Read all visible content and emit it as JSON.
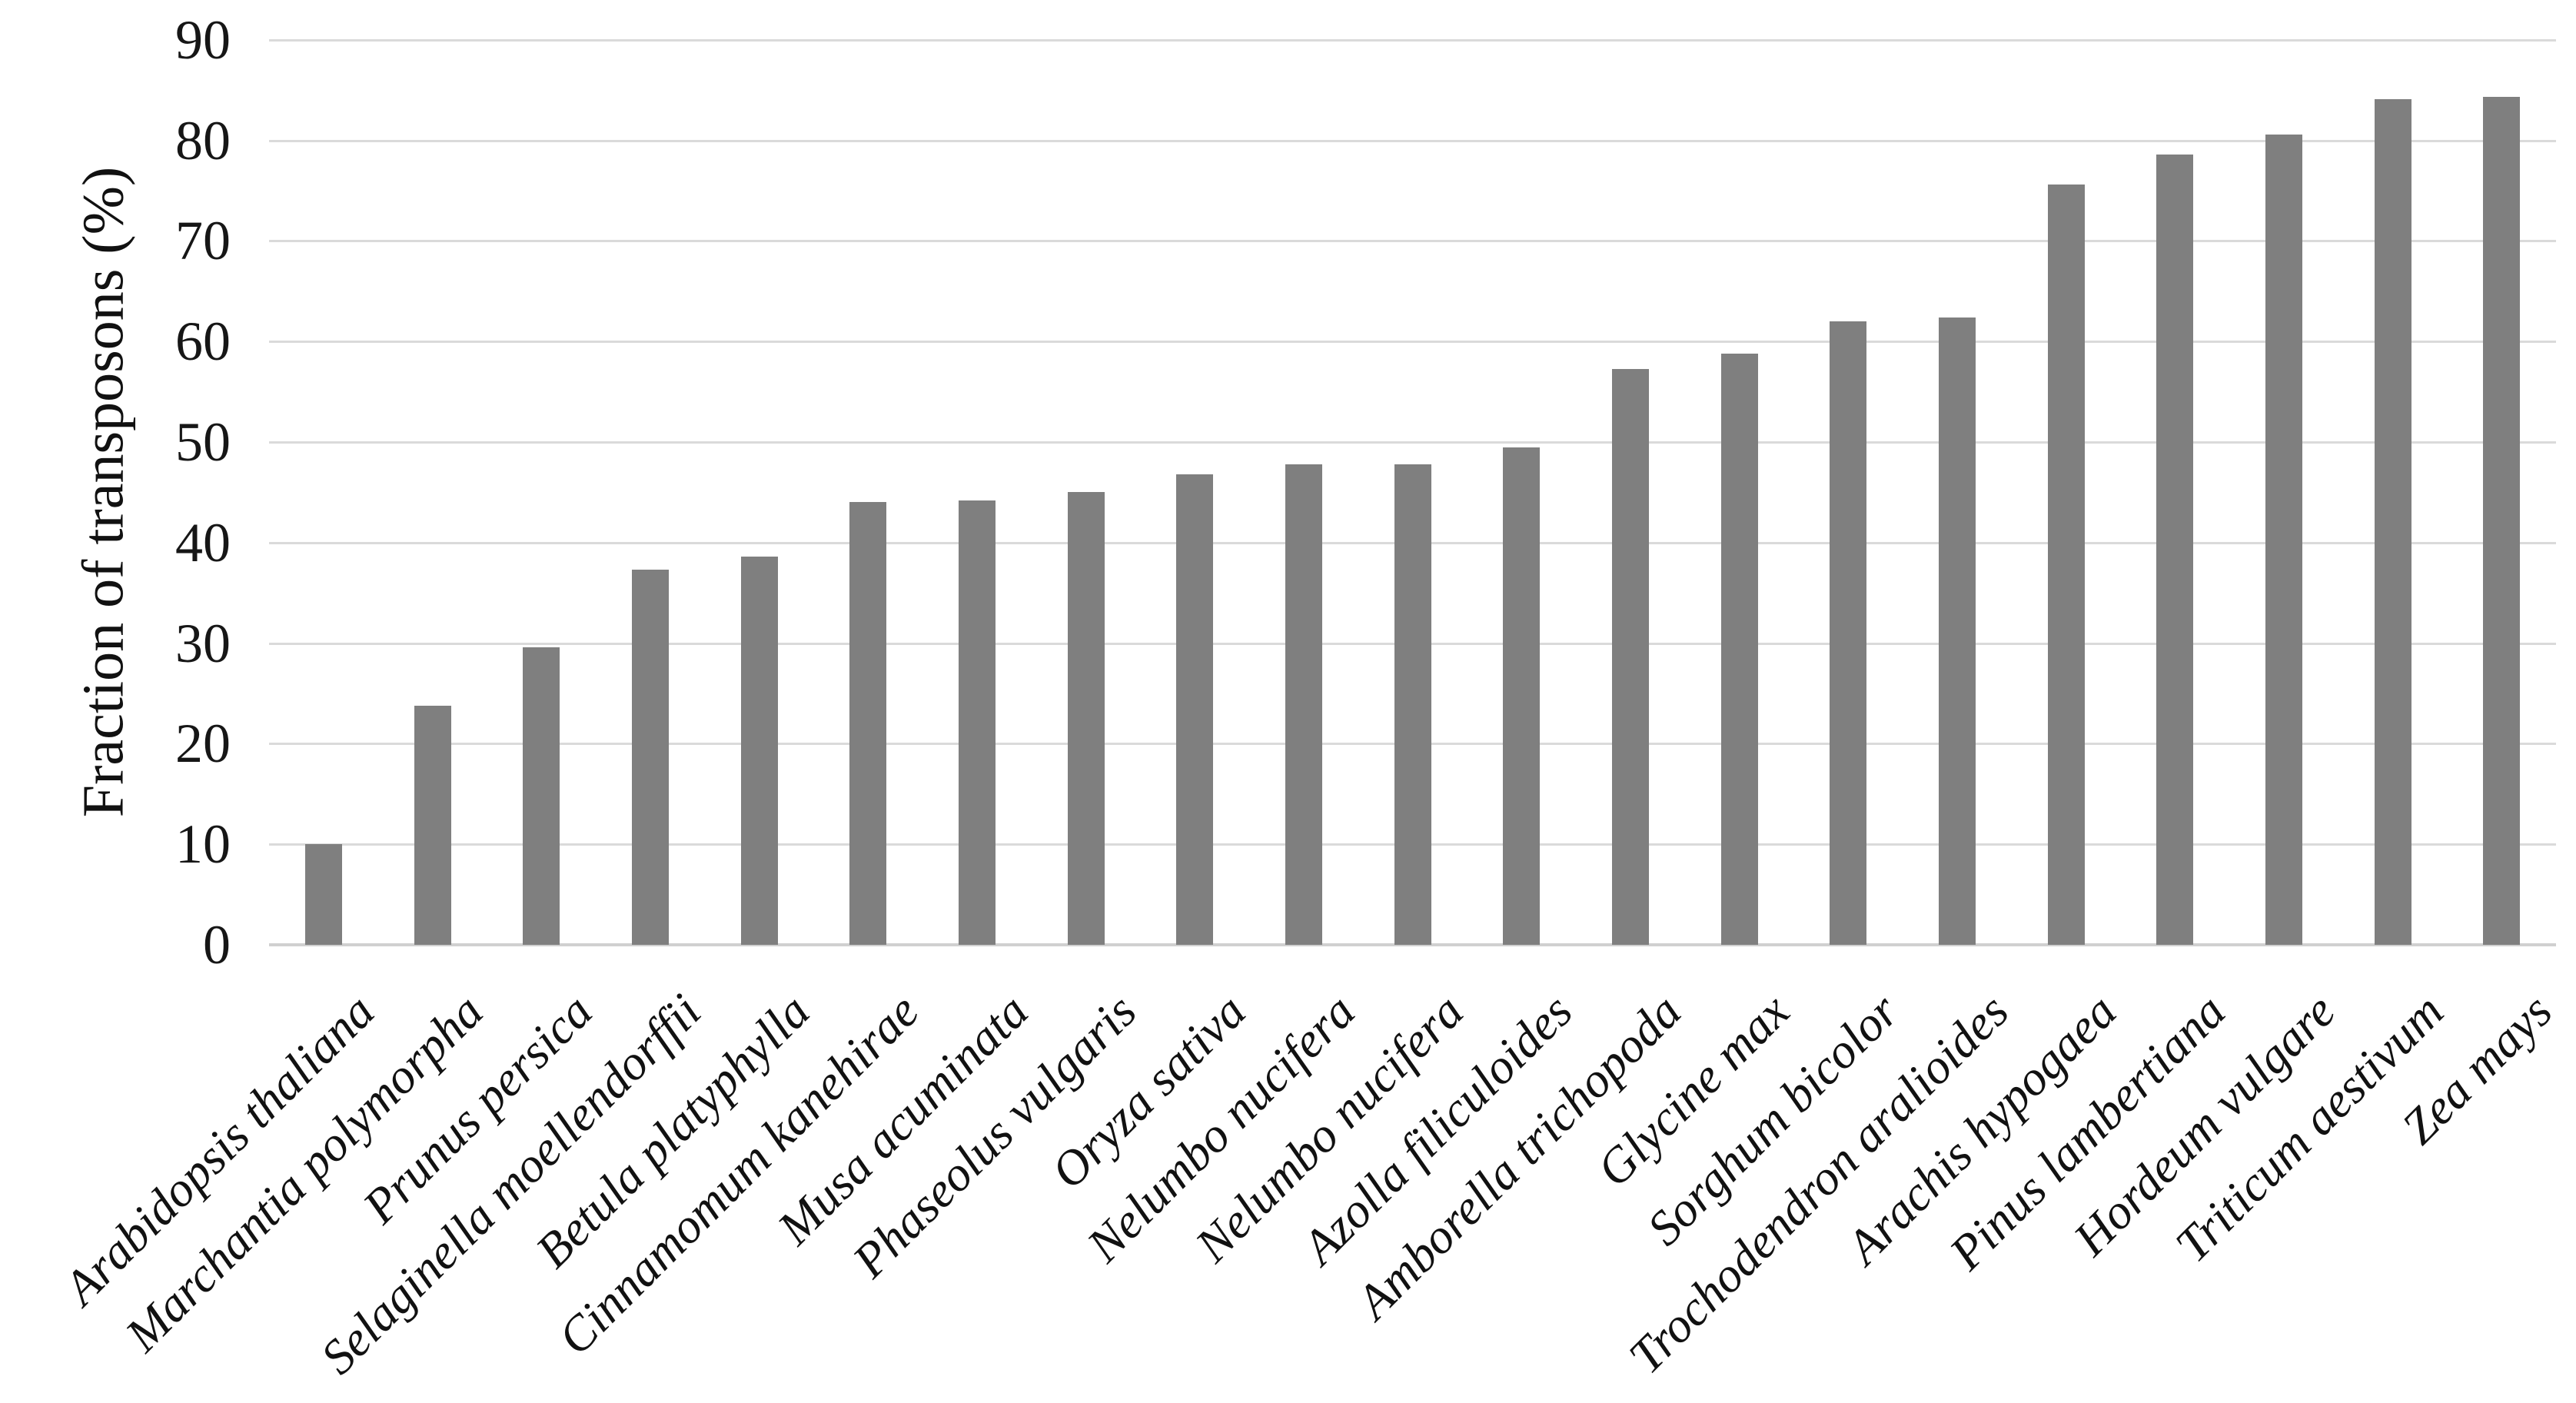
{
  "chart_data": {
    "type": "bar",
    "title": "",
    "xlabel": "",
    "ylabel": "Fraction of transposons (%)",
    "ylim": [
      0,
      90
    ],
    "ytick_step": 10,
    "yticks": [
      0,
      10,
      20,
      30,
      40,
      50,
      60,
      70,
      80,
      90
    ],
    "grid": "horizontal-major",
    "legend": "none",
    "bar_color": "#7f7f7f",
    "gridline_color": "#dadada",
    "axis_line_color": "#d0d0d0",
    "tick_label_color": "#161616",
    "categories": [
      "Arabidopsis thaliana",
      "Marchantia polymorpha",
      "Prunus persica",
      "Selaginella moellendorffii",
      "Betula platyphylla",
      "Cinnamomum kanehirae",
      "Musa acuminata",
      "Phaseolus vulgaris",
      "Oryza sativa",
      "Nelumbo nucifera",
      "Nelumbo nucifera",
      "Azolla filiculoides",
      "Amborella trichopoda",
      "Glycine max",
      "Sorghum bicolor",
      "Trochodendron aralioides",
      "Arachis hypogaea",
      "Pinus lambertiana",
      "Hordeum vulgare",
      "Triticum aestivum",
      "Zea mays"
    ],
    "values": [
      10.0,
      23.8,
      29.6,
      37.3,
      38.6,
      44.0,
      44.2,
      45.0,
      46.8,
      47.8,
      47.8,
      49.5,
      57.3,
      58.8,
      62.0,
      62.4,
      75.6,
      78.6,
      80.6,
      84.1,
      84.3
    ]
  }
}
